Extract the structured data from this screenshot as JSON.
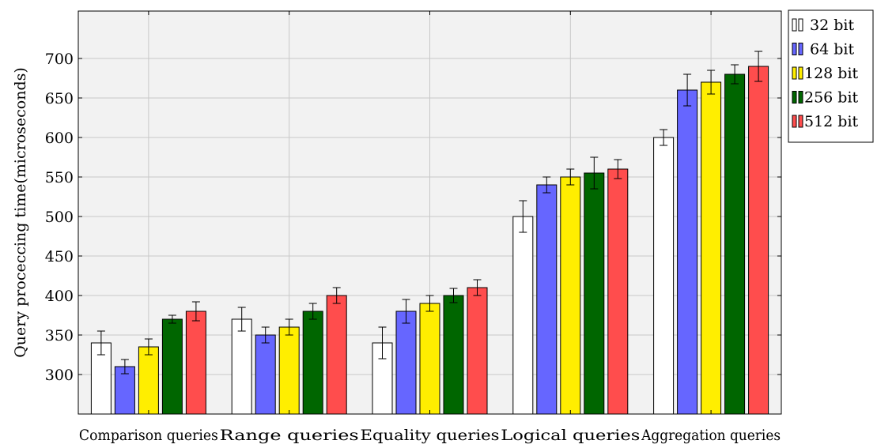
{
  "chart_data": {
    "type": "bar",
    "title": "",
    "xlabel": "",
    "ylabel": "Query proceccing time(microseconds)",
    "ylim": [
      250,
      760
    ],
    "yticks": [
      300,
      350,
      400,
      450,
      500,
      550,
      600,
      650,
      700
    ],
    "grid": true,
    "legend_position": "outside-top-right",
    "categories": [
      "Comparison queries",
      "Range queries",
      "Equality queries",
      "Logical queries",
      "Aggregation queries"
    ],
    "series": [
      {
        "name": "32 bit",
        "color": "#ffffff",
        "values": [
          340,
          370,
          340,
          500,
          600
        ],
        "errors": [
          15,
          15,
          20,
          20,
          10
        ]
      },
      {
        "name": "64 bit",
        "color": "#6666ff",
        "values": [
          310,
          350,
          380,
          540,
          660
        ],
        "errors": [
          9,
          10,
          15,
          10,
          20
        ]
      },
      {
        "name": "128 bit",
        "color": "#ffee00",
        "values": [
          335,
          360,
          390,
          550,
          670
        ],
        "errors": [
          10,
          10,
          10,
          10,
          15
        ]
      },
      {
        "name": "256 bit",
        "color": "#006600",
        "values": [
          370,
          380,
          400,
          555,
          680
        ],
        "errors": [
          5,
          10,
          9,
          20,
          12
        ]
      },
      {
        "name": "512 bit",
        "color": "#ff4d4d",
        "values": [
          380,
          400,
          410,
          560,
          690
        ],
        "errors": [
          12,
          10,
          10,
          12,
          19
        ]
      }
    ]
  }
}
